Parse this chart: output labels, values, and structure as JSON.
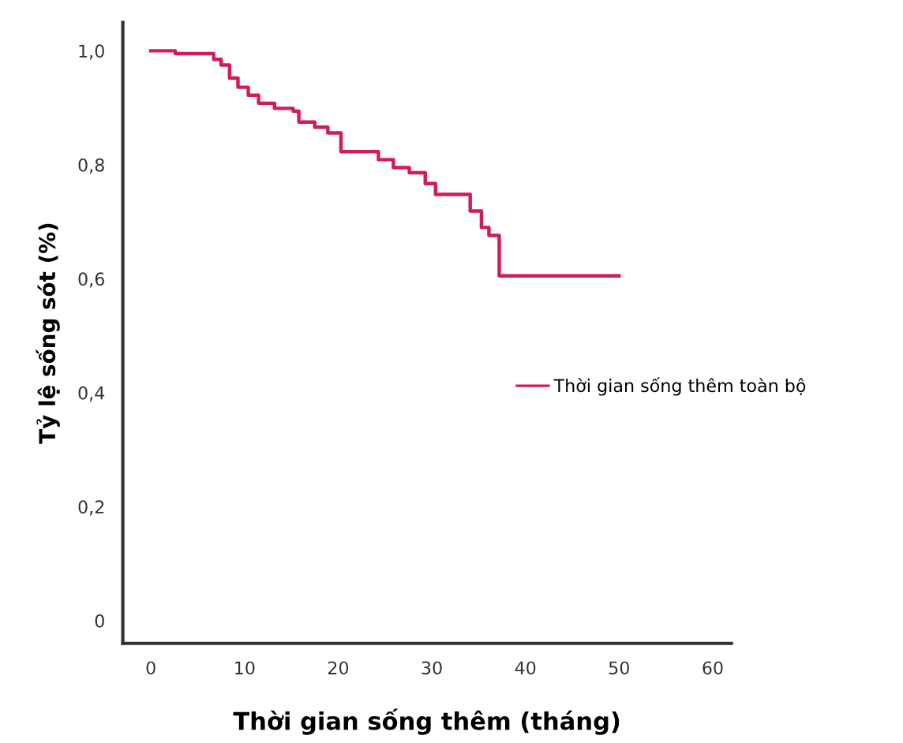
{
  "chart_data": {
    "type": "step",
    "xlabel": "Thời gian sống thêm (tháng)",
    "ylabel": "Tỷ lệ sống sót (%)",
    "xlim": [
      -3,
      62
    ],
    "ylim": [
      -0.04,
      1.05
    ],
    "xticks": [
      0,
      10,
      20,
      30,
      40,
      50,
      60
    ],
    "yticks": [
      {
        "value": 0,
        "label": "0"
      },
      {
        "value": 0.2,
        "label": "0,2"
      },
      {
        "value": 0.4,
        "label": "0,4"
      },
      {
        "value": 0.6,
        "label": "0,6"
      },
      {
        "value": 0.8,
        "label": "0,8"
      },
      {
        "value": 1.0,
        "label": "1,0"
      }
    ],
    "grid": false,
    "legend": "right",
    "line_style": "solid",
    "series": [
      {
        "name": "Thời gian sống thêm toàn bộ",
        "color": "#d01c5c",
        "x": [
          0,
          2.6,
          6.7,
          7.5,
          8.4,
          9.3,
          10.4,
          11.5,
          13.2,
          15.2,
          15.8,
          17.5,
          18.9,
          20.3,
          24.3,
          25.9,
          27.6,
          29.3,
          30.4,
          34.1,
          35.3,
          36.1,
          37.2,
          50.0
        ],
        "values": [
          1.0,
          0.995,
          0.985,
          0.975,
          0.952,
          0.936,
          0.922,
          0.908,
          0.899,
          0.894,
          0.875,
          0.866,
          0.856,
          0.823,
          0.809,
          0.795,
          0.786,
          0.767,
          0.748,
          0.719,
          0.69,
          0.676,
          0.605,
          0.605
        ]
      }
    ]
  }
}
